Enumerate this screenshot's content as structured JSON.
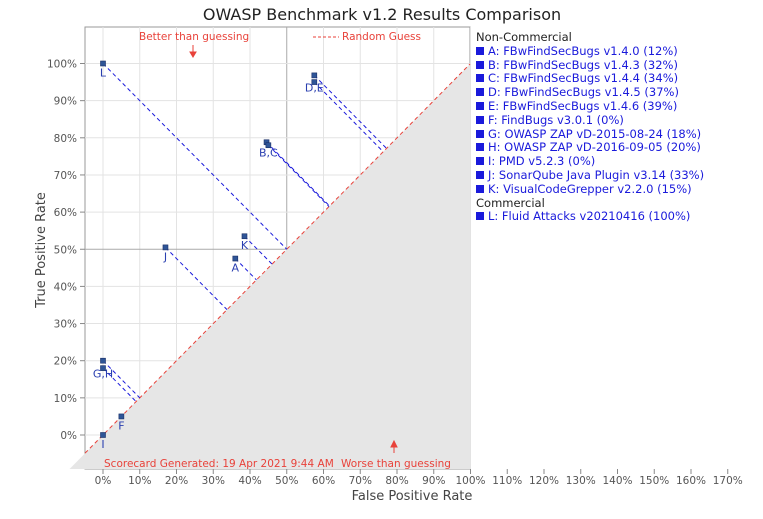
{
  "chart_data": {
    "type": "scatter",
    "title": "OWASP Benchmark v1.2 Results Comparison",
    "xlabel": "False Positive Rate",
    "ylabel": "True Positive Rate",
    "xlim": [
      -5,
      170
    ],
    "ylim": [
      -10,
      110
    ],
    "x_ticks": [
      "0%",
      "10%",
      "20%",
      "30%",
      "40%",
      "50%",
      "60%",
      "70%",
      "80%",
      "90%",
      "100%",
      "110%",
      "120%",
      "130%",
      "140%",
      "150%",
      "160%",
      "170%"
    ],
    "y_ticks": [
      "0%",
      "10%",
      "20%",
      "30%",
      "40%",
      "50%",
      "60%",
      "70%",
      "80%",
      "90%",
      "100%"
    ],
    "grid": true,
    "random_guess_label": "Random Guess",
    "better_label": "Better than guessing",
    "worse_label": "Worse than guessing",
    "footer": "Scorecard Generated: 19 Apr 2021 9:44 AM",
    "point_color": "#2f5597",
    "legend_color": "#1a1adb",
    "random_color": "#e8423a",
    "points": [
      {
        "label": "A",
        "x": 36.0,
        "y": 47.5
      },
      {
        "label": "B",
        "x": 44.5,
        "y": 78.8
      },
      {
        "label": "C",
        "x": 45.0,
        "y": 78.0
      },
      {
        "label": "D",
        "x": 57.5,
        "y": 96.8
      },
      {
        "label": "E",
        "x": 57.5,
        "y": 95.0
      },
      {
        "label": "F",
        "x": 5.0,
        "y": 5.0
      },
      {
        "label": "G",
        "x": 0.0,
        "y": 18.0
      },
      {
        "label": "H",
        "x": 0.0,
        "y": 20.0
      },
      {
        "label": "I",
        "x": 0.0,
        "y": 0.0
      },
      {
        "label": "J",
        "x": 17.0,
        "y": 50.5
      },
      {
        "label": "K",
        "x": 38.5,
        "y": 53.5
      },
      {
        "label": "L",
        "x": 0.0,
        "y": 100.0
      }
    ],
    "point_labels": [
      {
        "text": "A",
        "x": 36.0,
        "y": 47.5
      },
      {
        "text": "B,C",
        "x": 45.0,
        "y": 78.5
      },
      {
        "text": "D,E",
        "x": 57.5,
        "y": 96.0
      },
      {
        "text": "F",
        "x": 5.0,
        "y": 5.0
      },
      {
        "text": "G,H",
        "x": 0.0,
        "y": 19.0
      },
      {
        "text": "I",
        "x": 0.0,
        "y": 0.0
      },
      {
        "text": "J",
        "x": 17.0,
        "y": 50.5
      },
      {
        "text": "K",
        "x": 38.5,
        "y": 53.5
      },
      {
        "text": "L",
        "x": 0.0,
        "y": 100.0
      }
    ]
  },
  "legend": {
    "groups": [
      {
        "name": "Non-Commercial",
        "items": [
          "A: FBwFindSecBugs v1.4.0 (12%)",
          "B: FBwFindSecBugs v1.4.3 (32%)",
          "C: FBwFindSecBugs v1.4.4 (34%)",
          "D: FBwFindSecBugs v1.4.5 (37%)",
          "E: FBwFindSecBugs v1.4.6 (39%)",
          "F: FindBugs v3.0.1 (0%)",
          "G: OWASP ZAP vD-2015-08-24 (18%)",
          "H: OWASP ZAP vD-2016-09-05 (20%)",
          "I:  PMD v5.2.3 (0%)",
          "J: SonarQube Java Plugin v3.14 (33%)",
          "K: VisualCodeGrepper v2.2.0 (15%)"
        ]
      },
      {
        "name": "Commercial",
        "items": [
          "L: Fluid Attacks v20210416 (100%)"
        ]
      }
    ]
  }
}
